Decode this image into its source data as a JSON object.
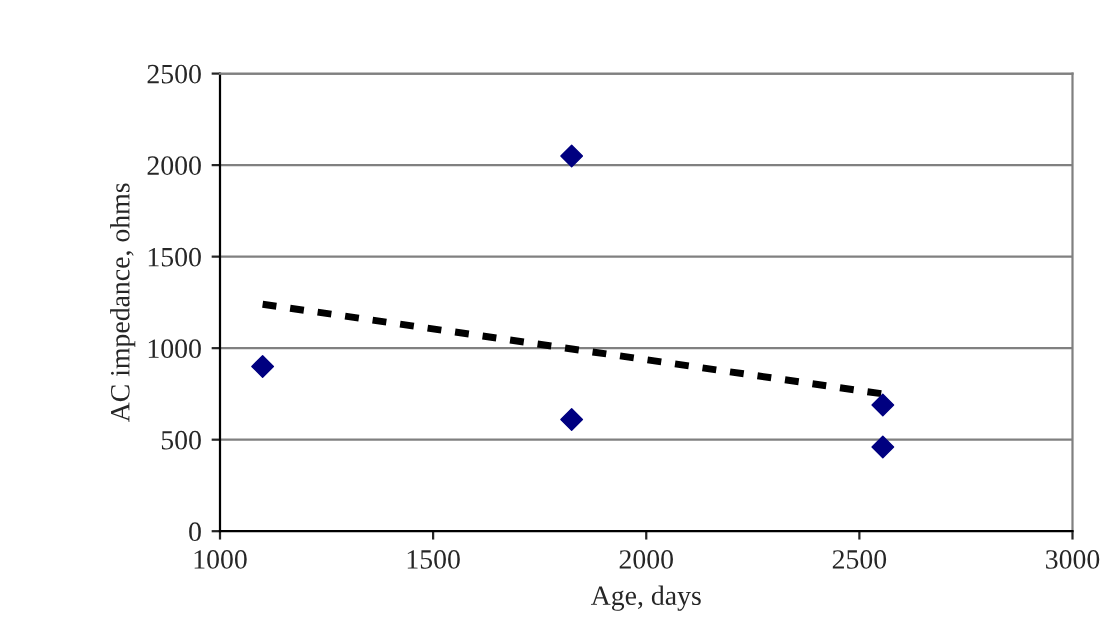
{
  "chart_data": {
    "type": "scatter",
    "xlabel": "Age, days",
    "ylabel": "AC impedance, ohms",
    "series": [
      {
        "color": "#000080",
        "marker": "diamond",
        "x": [
          1100,
          1825,
          1825,
          2555,
          2555
        ],
        "values": [
          900,
          2050,
          610,
          690,
          460
        ]
      },
      {
        "type": "line",
        "color": "#000000",
        "marker": "none",
        "line_style": "dashed",
        "x": [
          1100,
          2555
        ],
        "values": [
          1240,
          750
        ]
      }
    ],
    "xlim": [
      1000,
      3000
    ],
    "xticks": [
      1000,
      1500,
      2000,
      2500,
      3000
    ],
    "ylim": [
      0,
      2500
    ],
    "yticks": [
      0,
      500,
      1000,
      1500,
      2000,
      2500
    ],
    "grid": "y",
    "legend": false
  }
}
